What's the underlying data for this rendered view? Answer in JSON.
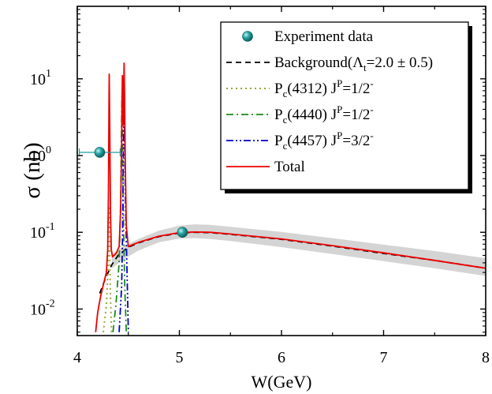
{
  "chart_data": {
    "type": "line",
    "title": "",
    "xlabel": "W(GeV)",
    "ylabel": "σ (nb)",
    "xlim": [
      4,
      8
    ],
    "ylim": [
      0.005,
      50
    ],
    "yscale": "log",
    "xticks": [
      4,
      5,
      6,
      7,
      8
    ],
    "xtick_labels": [
      "4",
      "5",
      "6",
      "7",
      "8"
    ],
    "yticks": [
      0.01,
      0.1,
      1,
      10
    ],
    "ytick_labels": [
      {
        "base": "10",
        "exp": "-2"
      },
      {
        "base": "10",
        "exp": "-1"
      },
      {
        "base": "10",
        "exp": "0"
      },
      {
        "base": "10",
        "exp": "1"
      }
    ],
    "grid": false,
    "legend_position": "top-right",
    "legend": [
      {
        "key": "exp",
        "style": "marker",
        "parts": [
          {
            "t": "Experiment data"
          }
        ]
      },
      {
        "key": "bg",
        "style": "dash",
        "parts": [
          {
            "t": "Background(Λ"
          },
          {
            "t": "t",
            "sub": true
          },
          {
            "t": "=2.0 ± 0.5)"
          }
        ]
      },
      {
        "key": "pc4312",
        "style": "dot",
        "parts": [
          {
            "t": "P"
          },
          {
            "t": "c",
            "sub": true
          },
          {
            "t": "(4312) J"
          },
          {
            "t": "P",
            "sup": true
          },
          {
            "t": "=1/2"
          },
          {
            "t": "-",
            "sup": true
          }
        ]
      },
      {
        "key": "pc4440",
        "style": "dashdot",
        "parts": [
          {
            "t": "P"
          },
          {
            "t": "c",
            "sub": true
          },
          {
            "t": "(4440) J"
          },
          {
            "t": "P",
            "sup": true
          },
          {
            "t": "=1/2"
          },
          {
            "t": "-",
            "sup": true
          }
        ]
      },
      {
        "key": "pc4457",
        "style": "dashdotdot",
        "parts": [
          {
            "t": "P"
          },
          {
            "t": "c",
            "sub": true
          },
          {
            "t": "(4457) J"
          },
          {
            "t": "P",
            "sup": true
          },
          {
            "t": "=3/2"
          },
          {
            "t": "-",
            "sup": true
          }
        ]
      },
      {
        "key": "total",
        "style": "solid",
        "parts": [
          {
            "t": "Total"
          }
        ]
      }
    ],
    "series": [
      {
        "key": "band",
        "color": "#d4d4d4",
        "upper": [
          [
            4.34,
            0.052
          ],
          [
            4.45,
            0.065
          ],
          [
            4.6,
            0.082
          ],
          [
            4.8,
            0.105
          ],
          [
            5.0,
            0.122
          ],
          [
            5.15,
            0.127
          ],
          [
            5.3,
            0.125
          ],
          [
            5.5,
            0.118
          ],
          [
            6.0,
            0.101
          ],
          [
            6.5,
            0.084
          ],
          [
            7.0,
            0.069
          ],
          [
            7.5,
            0.057
          ],
          [
            8.0,
            0.046
          ]
        ],
        "lower": [
          [
            4.34,
            0.034
          ],
          [
            4.45,
            0.044
          ],
          [
            4.6,
            0.058
          ],
          [
            4.8,
            0.074
          ],
          [
            5.0,
            0.083
          ],
          [
            5.15,
            0.084
          ],
          [
            5.3,
            0.082
          ],
          [
            5.5,
            0.077
          ],
          [
            6.0,
            0.064
          ],
          [
            6.5,
            0.052
          ],
          [
            7.0,
            0.042
          ],
          [
            7.5,
            0.034
          ],
          [
            8.0,
            0.027
          ]
        ]
      },
      {
        "key": "bg",
        "color": "#000000",
        "dash": "7,5",
        "width": 1.8,
        "points": [
          [
            4.22,
            0.016
          ],
          [
            4.28,
            0.026
          ],
          [
            4.34,
            0.038
          ],
          [
            4.4,
            0.05
          ],
          [
            4.5,
            0.064
          ],
          [
            4.6,
            0.073
          ],
          [
            4.8,
            0.088
          ],
          [
            5.0,
            0.098
          ],
          [
            5.15,
            0.1
          ],
          [
            5.3,
            0.099
          ],
          [
            5.5,
            0.094
          ],
          [
            6.0,
            0.081
          ],
          [
            6.5,
            0.066
          ],
          [
            7.0,
            0.053
          ],
          [
            7.5,
            0.043
          ],
          [
            8.0,
            0.034
          ]
        ]
      },
      {
        "key": "pc4312",
        "color": "#9aa53a",
        "dash": "2,4",
        "width": 2,
        "points": [
          [
            4.255,
            0.005
          ],
          [
            4.285,
            0.011
          ],
          [
            4.3,
            0.03
          ],
          [
            4.306,
            0.09
          ],
          [
            4.311,
            0.22
          ],
          [
            4.316,
            0.09
          ],
          [
            4.323,
            0.02
          ],
          [
            4.335,
            0.005
          ]
        ]
      },
      {
        "key": "pc4440",
        "color": "#1a8c1a",
        "dash": "9,4,2,4",
        "width": 1.8,
        "points": [
          [
            4.35,
            0.005
          ],
          [
            4.38,
            0.012
          ],
          [
            4.41,
            0.04
          ],
          [
            4.425,
            0.25
          ],
          [
            4.432,
            1.5
          ],
          [
            4.438,
            6.0
          ],
          [
            4.443,
            1.5
          ],
          [
            4.45,
            0.2
          ],
          [
            4.465,
            0.02
          ],
          [
            4.48,
            0.005
          ]
        ]
      },
      {
        "key": "pc4457",
        "color": "#0000cc",
        "dash": "9,3,2,3,2,3",
        "width": 1.8,
        "points": [
          [
            4.41,
            0.005
          ],
          [
            4.435,
            0.02
          ],
          [
            4.445,
            0.12
          ],
          [
            4.452,
            1.2
          ],
          [
            4.458,
            7.0
          ],
          [
            4.463,
            2.0
          ],
          [
            4.472,
            0.25
          ],
          [
            4.49,
            0.02
          ],
          [
            4.5,
            0.005
          ]
        ]
      },
      {
        "key": "total",
        "color": "#ee0000",
        "width": 1.8,
        "points": [
          [
            4.18,
            0.005
          ],
          [
            4.2,
            0.009
          ],
          [
            4.23,
            0.015
          ],
          [
            4.26,
            0.022
          ],
          [
            4.285,
            0.03
          ],
          [
            4.298,
            0.06
          ],
          [
            4.305,
            0.3
          ],
          [
            4.31,
            3.0
          ],
          [
            4.313,
            11.5
          ],
          [
            4.318,
            2.5
          ],
          [
            4.325,
            0.2
          ],
          [
            4.333,
            0.06
          ],
          [
            4.345,
            0.048
          ],
          [
            4.36,
            0.05
          ],
          [
            4.38,
            0.053
          ],
          [
            4.41,
            0.065
          ],
          [
            4.425,
            0.2
          ],
          [
            4.433,
            1.0
          ],
          [
            4.438,
            4.5
          ],
          [
            4.442,
            11.0
          ],
          [
            4.446,
            5.0
          ],
          [
            4.45,
            2.5
          ],
          [
            4.455,
            7.0
          ],
          [
            4.459,
            16.0
          ],
          [
            4.463,
            6.0
          ],
          [
            4.47,
            0.8
          ],
          [
            4.48,
            0.12
          ],
          [
            4.5,
            0.065
          ],
          [
            4.53,
            0.068
          ],
          [
            4.6,
            0.074
          ],
          [
            4.8,
            0.089
          ],
          [
            5.0,
            0.099
          ],
          [
            5.15,
            0.101
          ],
          [
            5.3,
            0.1
          ],
          [
            5.5,
            0.095
          ],
          [
            6.0,
            0.082
          ],
          [
            6.5,
            0.067
          ],
          [
            7.0,
            0.054
          ],
          [
            7.5,
            0.043
          ],
          [
            8.0,
            0.034
          ]
        ]
      }
    ],
    "points": [
      {
        "key": "exp",
        "name": "Experiment data",
        "color": "#1f9e9e",
        "x": 4.22,
        "y": 1.1,
        "xerr": [
          0.2,
          0.2
        ]
      },
      {
        "key": "exp",
        "name": "Experiment data",
        "color": "#1f9e9e",
        "x": 5.03,
        "y": 0.1
      }
    ]
  }
}
